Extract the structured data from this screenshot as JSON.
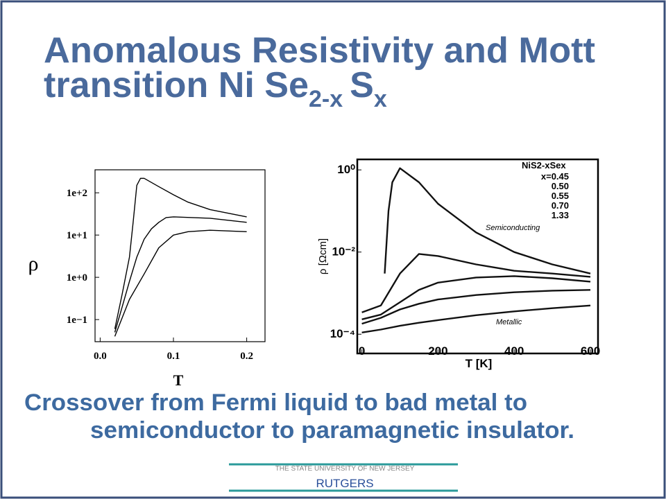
{
  "header": {
    "title_lines": [
      "Anomalous Resistivity and Mott",
      "transition Ni Se",
      "2-x",
      "S",
      "x"
    ]
  },
  "chart_data": [
    {
      "type": "line",
      "log_y": true,
      "color": "#000000",
      "xlabel": "T",
      "ylabel": "ρ",
      "xlim": [
        -0.007,
        0.225
      ],
      "ylim": [
        0.03,
        350
      ],
      "xticks": [
        {
          "value": 0,
          "label": "0.0"
        },
        0.1,
        0.2
      ],
      "yticks": [
        {
          "value": 0.1,
          "label": "1e−1"
        },
        {
          "value": 1,
          "label": "1e+0"
        },
        {
          "value": 10,
          "label": "1e+1"
        },
        {
          "value": 100,
          "label": "1e+2"
        }
      ],
      "series": [
        {
          "x": [
            0.02,
            0.03,
            0.04,
            0.045,
            0.05,
            0.055,
            0.06,
            0.08,
            0.1,
            0.12,
            0.15,
            0.2
          ],
          "values": [
            0.06,
            0.4,
            3,
            20,
            150,
            220,
            220,
            140,
            90,
            60,
            40,
            27
          ]
        },
        {
          "x": [
            0.02,
            0.03,
            0.04,
            0.05,
            0.06,
            0.07,
            0.08,
            0.09,
            0.1,
            0.15,
            0.2
          ],
          "values": [
            0.05,
            0.2,
            0.8,
            3,
            8,
            14,
            20,
            26,
            27,
            25,
            20
          ]
        },
        {
          "x": [
            0.02,
            0.04,
            0.06,
            0.08,
            0.1,
            0.12,
            0.15,
            0.2
          ],
          "values": [
            0.04,
            0.3,
            1.2,
            5,
            10,
            12,
            13,
            12
          ]
        }
      ]
    },
    {
      "type": "line",
      "log_y": true,
      "color": "#111111",
      "xlabel": "T [K]",
      "ylabel": "ρ [Ωcm]",
      "legend_title": "NiS2-xSex",
      "annotations": [
        "Semiconducting",
        "Metallic"
      ],
      "xlim": [
        -12,
        620
      ],
      "ylim": [
        3.4e-05,
        1.8
      ],
      "xticks": [
        0,
        200,
        400,
        600
      ],
      "yticks": [
        {
          "value": 0.0001,
          "label": "10⁻⁴"
        },
        {
          "value": 0.01,
          "label": "10⁻²"
        },
        {
          "value": 1,
          "label": "10⁰"
        }
      ],
      "series": [
        {
          "name": "x=0.45",
          "x": [
            60,
            70,
            80,
            100,
            150,
            200,
            300,
            400,
            500,
            600
          ],
          "values": [
            0.003,
            0.1,
            0.5,
            1.1,
            0.5,
            0.15,
            0.03,
            0.01,
            0.005,
            0.003
          ]
        },
        {
          "name": "0.50",
          "x": [
            0,
            50,
            100,
            150,
            200,
            300,
            400,
            500,
            600
          ],
          "values": [
            0.00034,
            0.0005,
            0.003,
            0.009,
            0.008,
            0.005,
            0.0035,
            0.003,
            0.0025
          ]
        },
        {
          "name": "0.55",
          "x": [
            0,
            50,
            100,
            150,
            200,
            300,
            400,
            500,
            600
          ],
          "values": [
            0.00023,
            0.0003,
            0.0006,
            0.0012,
            0.0018,
            0.0024,
            0.0026,
            0.0023,
            0.0019
          ]
        },
        {
          "name": "0.70",
          "x": [
            0,
            50,
            100,
            150,
            200,
            300,
            400,
            500,
            600
          ],
          "values": [
            0.00018,
            0.00025,
            0.0004,
            0.00055,
            0.0007,
            0.0009,
            0.00105,
            0.00115,
            0.0012
          ]
        },
        {
          "name": "1.33",
          "x": [
            0,
            50,
            100,
            150,
            200,
            300,
            400,
            500,
            600
          ],
          "values": [
            0.00011,
            0.00013,
            0.00016,
            0.00019,
            0.00022,
            0.00029,
            0.00036,
            0.00043,
            0.0005
          ]
        }
      ]
    }
  ],
  "caption": [
    "Crossover from Fermi liquid to bad metal to",
    "semiconductor to paramagnetic insulator."
  ],
  "footer": {
    "university": "THE STATE UNIVERSITY OF NEW JERSEY",
    "name": "RUTGERS"
  }
}
